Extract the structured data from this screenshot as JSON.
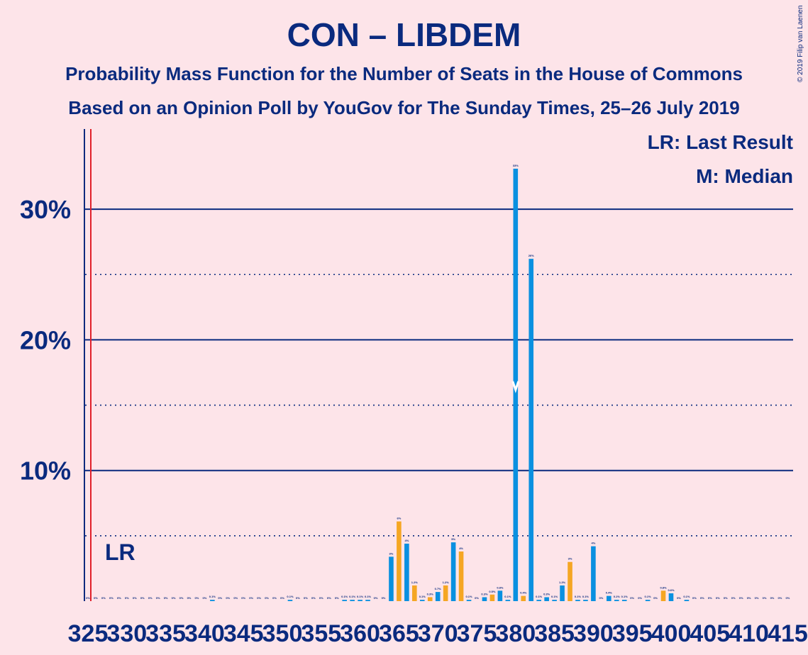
{
  "title": "CON – LIBDEM",
  "subtitle1": "Probability Mass Function for the Number of Seats in the House of Commons",
  "subtitle2": "Based on an Opinion Poll by YouGov for The Sunday Times, 25–26 July 2019",
  "copyright": "© 2019 Filip van Laenen",
  "colors": {
    "background": "#fde4e9",
    "text": "#0a2a7e",
    "blue_bar": "#0a90e0",
    "orange_bar": "#f5a623",
    "last_result_line": "#e0202a",
    "axis": "#0a2a7e"
  },
  "chart_data": {
    "type": "bar",
    "x": [
      325,
      326,
      327,
      328,
      329,
      330,
      331,
      332,
      333,
      334,
      335,
      336,
      337,
      338,
      339,
      340,
      341,
      342,
      343,
      344,
      345,
      346,
      347,
      348,
      349,
      350,
      351,
      352,
      353,
      354,
      355,
      356,
      357,
      358,
      359,
      360,
      361,
      362,
      363,
      364,
      365,
      366,
      367,
      368,
      369,
      370,
      371,
      372,
      373,
      374,
      375,
      376,
      377,
      378,
      379,
      380,
      381,
      382,
      383,
      384,
      385,
      386,
      387,
      388,
      389,
      390,
      391,
      392,
      393,
      394,
      395,
      396,
      397,
      398,
      399,
      400,
      401,
      402,
      403,
      404,
      405,
      406,
      407,
      408,
      409,
      410,
      411,
      412,
      413,
      414,
      415
    ],
    "values": [
      0,
      0,
      0,
      0,
      0,
      0,
      0,
      0,
      0,
      0,
      0,
      0,
      0,
      0,
      0,
      0,
      0.1,
      0,
      0,
      0,
      0,
      0,
      0,
      0,
      0,
      0,
      0.1,
      0,
      0,
      0,
      0,
      0,
      0,
      0.1,
      0.1,
      0.1,
      0.1,
      0,
      0,
      3.4,
      6.1,
      4.4,
      1.2,
      0.1,
      0.3,
      0.7,
      1.2,
      4.5,
      3.8,
      0.1,
      0,
      0.3,
      0.5,
      0.8,
      0.1,
      33.1,
      0.4,
      26.2,
      0.1,
      0.3,
      0.1,
      1.2,
      3.0,
      0.1,
      0.1,
      4.2,
      0,
      0.4,
      0.1,
      0.1,
      0,
      0,
      0.1,
      0,
      0.8,
      0.6,
      0,
      0.1,
      0,
      0,
      0,
      0,
      0,
      0,
      0,
      0,
      0,
      0,
      0,
      0,
      0
    ],
    "bar_colors": [
      "blue",
      "blue",
      "blue",
      "blue",
      "blue",
      "blue",
      "blue",
      "blue",
      "blue",
      "blue",
      "blue",
      "blue",
      "blue",
      "blue",
      "blue",
      "blue",
      "blue",
      "blue",
      "blue",
      "blue",
      "blue",
      "blue",
      "blue",
      "blue",
      "blue",
      "blue",
      "blue",
      "blue",
      "blue",
      "blue",
      "blue",
      "blue",
      "blue",
      "blue",
      "blue",
      "blue",
      "blue",
      "blue",
      "blue",
      "blue",
      "orange",
      "blue",
      "orange",
      "blue",
      "orange",
      "blue",
      "orange",
      "blue",
      "orange",
      "blue",
      "blue",
      "blue",
      "orange",
      "blue",
      "blue",
      "blue",
      "orange",
      "blue",
      "blue",
      "blue",
      "blue",
      "blue",
      "orange",
      "blue",
      "blue",
      "blue",
      "blue",
      "blue",
      "blue",
      "blue",
      "blue",
      "blue",
      "blue",
      "blue",
      "orange",
      "blue",
      "blue",
      "blue",
      "blue",
      "blue",
      "blue",
      "blue",
      "blue",
      "blue",
      "blue",
      "blue",
      "blue",
      "blue",
      "blue",
      "blue",
      "blue"
    ],
    "bar_labels": [
      "0%",
      "0%",
      "0%",
      "0%",
      "0%",
      "0%",
      "0%",
      "0%",
      "0%",
      "0%",
      "0%",
      "0%",
      "0%",
      "0%",
      "0%",
      "0%",
      "0.1%",
      "0%",
      "0%",
      "0%",
      "0%",
      "0%",
      "0%",
      "0%",
      "0%",
      "0%",
      "0.1%",
      "0%",
      "0%",
      "0%",
      "0%",
      "0%",
      "0%",
      "0.1%",
      "0.1%",
      "0.1%",
      "0.1%",
      "0%",
      "0%",
      "3%",
      "6%",
      "4%",
      "1.2%",
      "0.1%",
      "0.3%",
      "0.7%",
      "1.2%",
      "5%",
      "4%",
      "0.1%",
      "0%",
      "0.3%",
      "0.5%",
      "0.8%",
      "0.1%",
      "33%",
      "0.4%",
      "26%",
      "0.1%",
      "0.3%",
      "0.1%",
      "1.2%",
      "3%",
      "0.1%",
      "0.1%",
      "4%",
      "0%",
      "0.4%",
      "0.1%",
      "0.1%",
      "0%",
      "0%",
      "0.1%",
      "0%",
      "0.8%",
      "0.6%",
      "0%",
      "0.1%",
      "0%",
      "0%",
      "0%",
      "0%",
      "0%",
      "0%",
      "0%",
      "0%",
      "0%",
      "0%",
      "0%",
      "0%",
      "0%"
    ],
    "xticks": [
      "325",
      "330",
      "335",
      "340",
      "345",
      "350",
      "355",
      "360",
      "365",
      "370",
      "375",
      "380",
      "385",
      "390",
      "395",
      "400",
      "405",
      "410",
      "415"
    ],
    "yticks": [
      "10%",
      "20%",
      "30%"
    ],
    "ylim": [
      0,
      35
    ],
    "last_result": 325,
    "last_result_label": "LR",
    "median": 380,
    "legend": [
      "LR: Last Result",
      "M: Median"
    ]
  }
}
